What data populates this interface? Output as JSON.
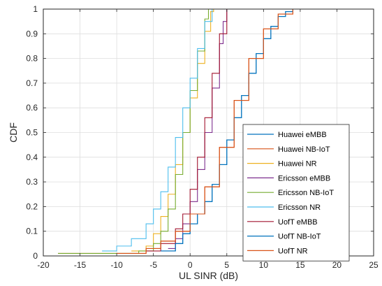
{
  "chart_data": {
    "type": "line",
    "title": "",
    "xlabel": "UL SINR (dB)",
    "ylabel": "CDF",
    "xlim": [
      -20,
      25
    ],
    "ylim": [
      0,
      1
    ],
    "xticks": [
      -20,
      -15,
      -10,
      -5,
      0,
      5,
      10,
      15,
      20,
      25
    ],
    "yticks": [
      0,
      0.1,
      0.2,
      0.3,
      0.4,
      0.5,
      0.6,
      0.7,
      0.8,
      0.9,
      1
    ],
    "xtick_labels": [
      "-20",
      "-15",
      "-10",
      "-5",
      "0",
      "5",
      "10",
      "15",
      "20",
      "25"
    ],
    "ytick_labels": [
      "0",
      "0.1",
      "0.2",
      "0.3",
      "0.4",
      "0.5",
      "0.6",
      "0.7",
      "0.8",
      "0.9",
      "1"
    ],
    "grid": true,
    "legend_position": "right",
    "series": [
      {
        "name": "Huawei eMBB",
        "color": "#0072BD",
        "x": [
          -4,
          -2,
          -1,
          0,
          1,
          2,
          3,
          4,
          5,
          6,
          7,
          8,
          9,
          10,
          11,
          12,
          13,
          14,
          15
        ],
        "y": [
          0.02,
          0.05,
          0.09,
          0.13,
          0.17,
          0.22,
          0.29,
          0.37,
          0.47,
          0.56,
          0.65,
          0.74,
          0.82,
          0.88,
          0.93,
          0.97,
          0.99,
          1.0,
          1.0
        ]
      },
      {
        "name": "Huawei NB-IoT",
        "color": "#D95319",
        "x": [
          -18,
          -10,
          -6,
          -4,
          -2,
          0,
          2,
          4,
          6,
          8,
          10,
          12,
          14,
          23.5
        ],
        "y": [
          0.01,
          0.01,
          0.03,
          0.06,
          0.1,
          0.17,
          0.28,
          0.44,
          0.63,
          0.8,
          0.92,
          0.98,
          1.0,
          1.0
        ]
      },
      {
        "name": "Huawei NR",
        "color": "#EDB120",
        "x": [
          -8,
          -6,
          -5,
          -4,
          -3,
          -2,
          -1,
          0,
          1,
          2,
          2.8,
          3.2,
          23.5
        ],
        "y": [
          0.02,
          0.04,
          0.09,
          0.16,
          0.25,
          0.37,
          0.5,
          0.64,
          0.78,
          0.91,
          0.99,
          1.0,
          1.0
        ]
      },
      {
        "name": "Ericsson eMBB",
        "color": "#7E2F8E",
        "x": [
          -3,
          -2,
          -1,
          0,
          1,
          2,
          3,
          4,
          4.5,
          5
        ],
        "y": [
          0.03,
          0.07,
          0.13,
          0.22,
          0.35,
          0.5,
          0.68,
          0.86,
          0.95,
          1.0
        ]
      },
      {
        "name": "Ericsson NB-IoT",
        "color": "#77AC30",
        "x": [
          -18,
          -10,
          -7,
          -5,
          -4,
          -3,
          -2,
          -1,
          0,
          1,
          2,
          2.5,
          23.5
        ],
        "y": [
          0.01,
          0.01,
          0.02,
          0.05,
          0.1,
          0.19,
          0.33,
          0.5,
          0.67,
          0.83,
          0.96,
          1.0,
          1.0
        ]
      },
      {
        "name": "Ericsson NR",
        "color": "#4DBEEE",
        "x": [
          -12,
          -10,
          -8,
          -6,
          -5,
          -4,
          -3,
          -2,
          -1,
          0,
          1,
          2,
          3,
          23.5
        ],
        "y": [
          0.02,
          0.04,
          0.07,
          0.13,
          0.19,
          0.26,
          0.36,
          0.48,
          0.6,
          0.72,
          0.84,
          0.95,
          1.0,
          1.0
        ]
      },
      {
        "name": "UofT eMBB",
        "color": "#A2142F",
        "x": [
          -6,
          -4,
          -2,
          -1,
          0,
          1,
          2,
          3,
          4,
          5
        ],
        "y": [
          0.02,
          0.05,
          0.11,
          0.17,
          0.27,
          0.4,
          0.56,
          0.74,
          0.9,
          1.0
        ]
      },
      {
        "name": "UofT NB-IoT",
        "color": "#0072BD",
        "x": [
          -4,
          -2,
          -1,
          0,
          1,
          2,
          3,
          4,
          5,
          6,
          7,
          8,
          9,
          10,
          11,
          12,
          13,
          14,
          15
        ],
        "y": [
          0.02,
          0.05,
          0.09,
          0.13,
          0.17,
          0.22,
          0.29,
          0.37,
          0.47,
          0.56,
          0.65,
          0.74,
          0.82,
          0.88,
          0.93,
          0.97,
          0.99,
          1.0,
          1.0
        ]
      },
      {
        "name": "UofT NR",
        "color": "#D95319",
        "x": [
          -10,
          -6,
          -4,
          -2,
          0,
          2,
          4,
          6,
          8,
          10,
          12,
          14,
          23.5
        ],
        "y": [
          0.01,
          0.03,
          0.06,
          0.1,
          0.17,
          0.28,
          0.44,
          0.63,
          0.8,
          0.92,
          0.98,
          1.0,
          1.0
        ]
      }
    ]
  }
}
